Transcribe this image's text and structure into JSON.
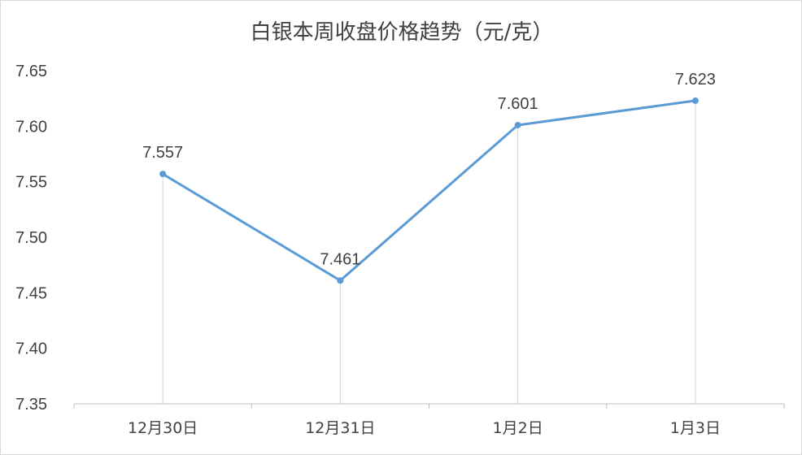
{
  "chart_data": {
    "type": "line",
    "title": "白银本周收盘价格趋势（元/克）",
    "xlabel": "",
    "ylabel": "",
    "categories": [
      "12月30日",
      "12月31日",
      "1月2日",
      "1月3日"
    ],
    "series": [
      {
        "values": [
          7.557,
          7.461,
          7.601,
          7.623
        ]
      }
    ],
    "data_labels": [
      "7.557",
      "7.461",
      "7.601",
      "7.623"
    ],
    "ylim": [
      7.35,
      7.65
    ],
    "yticks": [
      "7.35",
      "7.40",
      "7.45",
      "7.50",
      "7.55",
      "7.60",
      "7.65"
    ],
    "grid": false,
    "drop_lines": true,
    "legend": "none",
    "colors": {
      "line": "#5b9bd5",
      "drop_line": "#d9d9d9",
      "axis": "#bfbfbf",
      "text": "#404040"
    }
  }
}
